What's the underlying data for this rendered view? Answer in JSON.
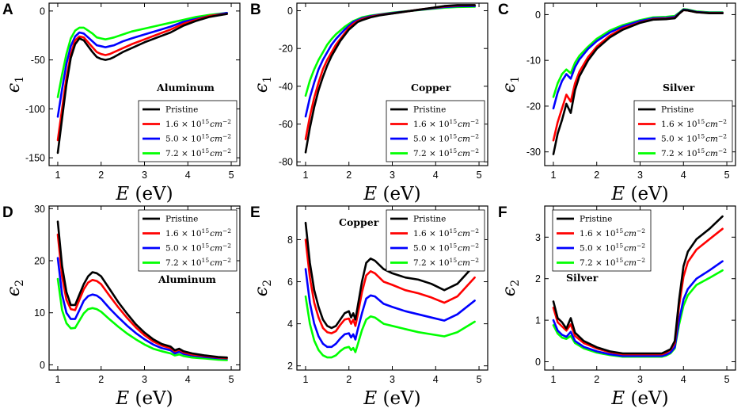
{
  "colors": {
    "pristine": "#000000",
    "dose1": "#ff0000",
    "dose2": "#0000ff",
    "dose3": "#00ff00"
  },
  "legend": {
    "pristine": "Pristine",
    "dose1": "1.6 × 10^15 cm^−2",
    "dose2": "5.0 × 10^15 cm^−2",
    "dose3": "7.2 × 10^15 cm^−2",
    "dose_mant": [
      "1.6",
      "5.0",
      "7.2"
    ],
    "times_base": "× 10",
    "exp": "15",
    "unit": "cm",
    "unit_exp": "−2"
  },
  "xlabel": {
    "var": "E",
    "unit": "(eV)"
  },
  "chart_data": [
    {
      "id": "A",
      "panel_label": "A",
      "type": "line",
      "material": "Aluminum",
      "quantity": "e1",
      "ylabel_sym": "ϵ",
      "ylabel_sub": "1",
      "xlim": [
        0.8,
        5.2
      ],
      "ylim": [
        -158,
        8
      ],
      "xticks": [
        1,
        2,
        3,
        4,
        5
      ],
      "yticks": [
        -150,
        -100,
        -50,
        0
      ],
      "x": [
        1.0,
        1.1,
        1.2,
        1.3,
        1.4,
        1.5,
        1.6,
        1.7,
        1.8,
        1.9,
        2.0,
        2.1,
        2.2,
        2.3,
        2.5,
        2.7,
        3.0,
        3.3,
        3.6,
        3.9,
        4.2,
        4.5,
        4.9
      ],
      "series": [
        {
          "name": "Pristine",
          "key": "pristine",
          "values": [
            -145,
            -110,
            -75,
            -48,
            -34,
            -28,
            -30,
            -36,
            -42,
            -47,
            -49,
            -50,
            -49,
            -47,
            -42,
            -38,
            -32,
            -27,
            -22,
            -15,
            -10,
            -6,
            -3
          ]
        },
        {
          "name": "1.6 × 10^15 cm^−2",
          "key": "dose1",
          "values": [
            -132,
            -100,
            -68,
            -44,
            -30,
            -26,
            -27,
            -32,
            -37,
            -42,
            -44,
            -45,
            -44,
            -42,
            -38,
            -34,
            -29,
            -24,
            -19,
            -13,
            -9,
            -5,
            -3
          ]
        },
        {
          "name": "5.0 × 10^15 cm^−2",
          "key": "dose2",
          "values": [
            -108,
            -80,
            -54,
            -36,
            -26,
            -22,
            -23,
            -27,
            -31,
            -35,
            -36,
            -37,
            -36,
            -35,
            -31,
            -28,
            -24,
            -20,
            -16,
            -11,
            -8,
            -5,
            -2
          ]
        },
        {
          "name": "7.2 × 10^15 cm^−2",
          "key": "dose3",
          "values": [
            -88,
            -65,
            -44,
            -28,
            -20,
            -17,
            -17,
            -20,
            -23,
            -27,
            -28,
            -29,
            -28,
            -27,
            -24,
            -21,
            -18,
            -15,
            -12,
            -9,
            -6,
            -4,
            -2
          ]
        }
      ]
    },
    {
      "id": "B",
      "panel_label": "B",
      "type": "line",
      "material": "Copper",
      "quantity": "e1",
      "ylabel_sym": "ϵ",
      "ylabel_sub": "1",
      "xlim": [
        0.8,
        5.2
      ],
      "ylim": [
        -82,
        4
      ],
      "xticks": [
        1,
        2,
        3,
        4,
        5
      ],
      "yticks": [
        -80,
        -60,
        -40,
        -20,
        0
      ],
      "x": [
        1.0,
        1.1,
        1.2,
        1.3,
        1.4,
        1.5,
        1.6,
        1.7,
        1.8,
        1.9,
        2.0,
        2.1,
        2.2,
        2.3,
        2.5,
        2.7,
        3.0,
        3.3,
        3.6,
        3.9,
        4.2,
        4.5,
        4.9
      ],
      "series": [
        {
          "name": "Pristine",
          "key": "pristine",
          "values": [
            -75,
            -62,
            -51,
            -42,
            -35,
            -29,
            -24,
            -20,
            -16,
            -13,
            -10,
            -8,
            -6,
            -5,
            -3.5,
            -2.5,
            -1.5,
            -0.5,
            0.5,
            1.5,
            2.5,
            3.0,
            3.0
          ]
        },
        {
          "name": "1.6 × 10^15 cm^−2",
          "key": "dose1",
          "values": [
            -68,
            -56,
            -46,
            -38,
            -31,
            -26,
            -22,
            -18,
            -15,
            -12,
            -9,
            -7,
            -5.5,
            -4.5,
            -3.2,
            -2.3,
            -1.4,
            -0.5,
            0.5,
            1.4,
            2.3,
            2.8,
            2.9
          ]
        },
        {
          "name": "5.0 × 10^15 cm^−2",
          "key": "dose2",
          "values": [
            -56,
            -46,
            -38,
            -31,
            -26,
            -22,
            -18,
            -15,
            -12.5,
            -10,
            -8,
            -6,
            -5,
            -4,
            -2.9,
            -2.1,
            -1.2,
            -0.4,
            0.4,
            1.2,
            2.0,
            2.4,
            2.5
          ]
        },
        {
          "name": "7.2 × 10^15 cm^−2",
          "key": "dose3",
          "values": [
            -45,
            -37,
            -31,
            -26,
            -22,
            -18,
            -15,
            -12.5,
            -10.5,
            -8.5,
            -7,
            -5.5,
            -4.5,
            -3.5,
            -2.6,
            -1.9,
            -1.0,
            -0.3,
            0.3,
            1.0,
            1.6,
            2.0,
            2.1
          ]
        }
      ]
    },
    {
      "id": "C",
      "panel_label": "C",
      "type": "line",
      "material": "Silver",
      "quantity": "e1",
      "ylabel_sym": "ϵ",
      "ylabel_sub": "1",
      "xlim": [
        0.8,
        5.2
      ],
      "ylim": [
        -33,
        2.5
      ],
      "xticks": [
        1,
        2,
        3,
        4,
        5
      ],
      "yticks": [
        -30,
        -20,
        -10,
        0
      ],
      "x": [
        1.0,
        1.1,
        1.2,
        1.3,
        1.4,
        1.5,
        1.6,
        1.8,
        2.0,
        2.3,
        2.6,
        3.0,
        3.3,
        3.6,
        3.7,
        3.8,
        3.9,
        4.0,
        4.1,
        4.3,
        4.6,
        4.9
      ],
      "series": [
        {
          "name": "Pristine",
          "key": "pristine",
          "values": [
            -30.5,
            -26,
            -23,
            -19.5,
            -21.5,
            -16.5,
            -13.5,
            -10,
            -7.5,
            -5,
            -3.3,
            -1.8,
            -1.1,
            -1.0,
            -0.9,
            -0.8,
            0.2,
            1.0,
            0.9,
            0.5,
            0.3,
            0.3
          ]
        },
        {
          "name": "1.6 × 10^15 cm^−2",
          "key": "dose1",
          "values": [
            -27.5,
            -23.5,
            -20.5,
            -17.5,
            -19,
            -15,
            -12.5,
            -9.3,
            -7,
            -4.6,
            -3.0,
            -1.7,
            -1.0,
            -0.9,
            -0.8,
            -0.7,
            0.2,
            1.0,
            0.9,
            0.5,
            0.35,
            0.35
          ]
        },
        {
          "name": "5.0 × 10^15 cm^−2",
          "key": "dose2",
          "values": [
            -20.5,
            -17,
            -14.5,
            -13,
            -14,
            -11.5,
            -9.8,
            -7.5,
            -5.8,
            -3.9,
            -2.6,
            -1.4,
            -0.8,
            -0.7,
            -0.6,
            -0.5,
            0.3,
            1.1,
            1.0,
            0.6,
            0.4,
            0.4
          ]
        },
        {
          "name": "7.2 × 10^15 cm^−2",
          "key": "dose3",
          "values": [
            -18,
            -15,
            -13,
            -12,
            -12.8,
            -10.5,
            -9,
            -7,
            -5.3,
            -3.5,
            -2.3,
            -1.2,
            -0.6,
            -0.5,
            -0.4,
            -0.3,
            0.4,
            1.2,
            1.1,
            0.7,
            0.5,
            0.5
          ]
        }
      ]
    },
    {
      "id": "D",
      "panel_label": "D",
      "type": "line",
      "material": "Aluminum",
      "quantity": "e2",
      "ylabel_sym": "ϵ",
      "ylabel_sub": "2",
      "xlim": [
        0.8,
        5.2
      ],
      "ylim": [
        -1,
        30.5
      ],
      "xticks": [
        1,
        2,
        3,
        4,
        5
      ],
      "yticks": [
        0,
        10,
        20,
        30
      ],
      "x": [
        1.0,
        1.1,
        1.2,
        1.3,
        1.4,
        1.5,
        1.6,
        1.7,
        1.8,
        1.9,
        2.0,
        2.2,
        2.4,
        2.6,
        2.8,
        3.0,
        3.2,
        3.4,
        3.6,
        3.7,
        3.8,
        3.9,
        4.1,
        4.4,
        4.7,
        4.9
      ],
      "series": [
        {
          "name": "Pristine",
          "key": "pristine",
          "values": [
            27.5,
            19,
            14,
            11.5,
            11.5,
            13.5,
            15.5,
            17,
            17.8,
            17.6,
            17,
            14.5,
            12,
            9.8,
            7.8,
            6.2,
            4.9,
            4.0,
            3.5,
            2.8,
            3.1,
            2.6,
            2.2,
            1.8,
            1.5,
            1.4
          ]
        },
        {
          "name": "1.6 × 10^15 cm^−2",
          "key": "dose1",
          "values": [
            25,
            17,
            12.5,
            10.7,
            10.5,
            12.5,
            14.5,
            15.8,
            16.3,
            16.1,
            15.5,
            13.2,
            11,
            9,
            7.2,
            5.7,
            4.5,
            3.7,
            3.2,
            2.6,
            2.9,
            2.4,
            2.0,
            1.7,
            1.4,
            1.3
          ]
        },
        {
          "name": "5.0 × 10^15 cm^−2",
          "key": "dose2",
          "values": [
            20.5,
            13.5,
            10,
            8.8,
            8.8,
            10.5,
            12.3,
            13.2,
            13.5,
            13.3,
            12.7,
            10.8,
            9.1,
            7.5,
            6.1,
            4.9,
            3.9,
            3.2,
            2.8,
            2.2,
            2.5,
            2.1,
            1.8,
            1.5,
            1.3,
            1.2
          ]
        },
        {
          "name": "7.2 × 10^15 cm^−2",
          "key": "dose3",
          "values": [
            16.5,
            10.5,
            8,
            7,
            7.1,
            8.5,
            9.9,
            10.7,
            10.9,
            10.7,
            10.2,
            8.7,
            7.3,
            6.0,
            4.9,
            3.9,
            3.1,
            2.6,
            2.2,
            1.8,
            2.0,
            1.7,
            1.4,
            1.2,
            1.0,
            0.9
          ]
        }
      ]
    },
    {
      "id": "E",
      "panel_label": "E",
      "type": "line",
      "material": "Copper",
      "quantity": "e2",
      "ylabel_sym": "ϵ",
      "ylabel_sub": "2",
      "xlim": [
        0.8,
        5.2
      ],
      "ylim": [
        1.8,
        9.6
      ],
      "xticks": [
        1,
        2,
        3,
        4,
        5
      ],
      "yticks": [
        2,
        4,
        6,
        8
      ],
      "x": [
        1.0,
        1.1,
        1.2,
        1.3,
        1.4,
        1.5,
        1.6,
        1.7,
        1.8,
        1.9,
        2.0,
        2.05,
        2.1,
        2.15,
        2.2,
        2.3,
        2.4,
        2.5,
        2.6,
        2.8,
        3.0,
        3.3,
        3.6,
        3.9,
        4.2,
        4.5,
        4.9
      ],
      "series": [
        {
          "name": "Pristine",
          "key": "pristine",
          "values": [
            8.8,
            6.9,
            5.6,
            4.8,
            4.2,
            3.9,
            3.8,
            3.9,
            4.2,
            4.5,
            4.6,
            4.3,
            4.5,
            4.2,
            4.8,
            6.0,
            6.9,
            7.1,
            7.0,
            6.6,
            6.4,
            6.2,
            6.1,
            5.9,
            5.6,
            5.9,
            6.8
          ]
        },
        {
          "name": "1.6 × 10^15 cm^−2",
          "key": "dose1",
          "values": [
            8.0,
            6.2,
            5.0,
            4.3,
            3.8,
            3.6,
            3.55,
            3.65,
            3.95,
            4.2,
            4.25,
            4.0,
            4.2,
            3.9,
            4.4,
            5.5,
            6.3,
            6.5,
            6.4,
            6.0,
            5.85,
            5.6,
            5.45,
            5.25,
            5.0,
            5.3,
            6.2
          ]
        },
        {
          "name": "5.0 × 10^15 cm^−2",
          "key": "dose2",
          "values": [
            6.6,
            5.0,
            4.0,
            3.4,
            3.05,
            2.9,
            2.9,
            3.05,
            3.3,
            3.5,
            3.55,
            3.35,
            3.5,
            3.25,
            3.7,
            4.5,
            5.2,
            5.35,
            5.3,
            4.95,
            4.8,
            4.6,
            4.45,
            4.3,
            4.15,
            4.45,
            5.1
          ]
        },
        {
          "name": "7.2 × 10^15 cm^−2",
          "key": "dose3",
          "values": [
            5.3,
            4.0,
            3.2,
            2.75,
            2.5,
            2.4,
            2.4,
            2.5,
            2.7,
            2.85,
            2.9,
            2.75,
            2.85,
            2.65,
            3.0,
            3.7,
            4.2,
            4.35,
            4.3,
            4.0,
            3.9,
            3.75,
            3.6,
            3.5,
            3.4,
            3.6,
            4.1
          ]
        }
      ]
    },
    {
      "id": "F",
      "panel_label": "F",
      "type": "line",
      "material": "Silver",
      "quantity": "e2",
      "ylabel_sym": "ϵ",
      "ylabel_sub": "2",
      "xlim": [
        0.8,
        5.2
      ],
      "ylim": [
        -0.2,
        3.75
      ],
      "xticks": [
        1,
        2,
        3,
        4,
        5
      ],
      "yticks": [
        0,
        1,
        2,
        3
      ],
      "x": [
        1.0,
        1.1,
        1.2,
        1.3,
        1.4,
        1.5,
        1.7,
        2.0,
        2.3,
        2.6,
        3.0,
        3.3,
        3.5,
        3.6,
        3.7,
        3.8,
        3.9,
        4.0,
        4.1,
        4.3,
        4.6,
        4.9
      ],
      "series": [
        {
          "name": "Pristine",
          "key": "pristine",
          "values": [
            1.45,
            1.05,
            0.95,
            0.8,
            1.05,
            0.7,
            0.5,
            0.35,
            0.25,
            0.2,
            0.2,
            0.2,
            0.2,
            0.25,
            0.3,
            0.5,
            1.5,
            2.3,
            2.65,
            2.95,
            3.2,
            3.5
          ]
        },
        {
          "name": "1.6 × 10^15 cm^−2",
          "key": "dose1",
          "values": [
            1.3,
            0.95,
            0.85,
            0.75,
            0.9,
            0.62,
            0.45,
            0.32,
            0.23,
            0.18,
            0.18,
            0.18,
            0.18,
            0.22,
            0.28,
            0.45,
            1.35,
            2.05,
            2.4,
            2.7,
            2.95,
            3.2
          ]
        },
        {
          "name": "5.0 × 10^15 cm^−2",
          "key": "dose2",
          "values": [
            1.0,
            0.75,
            0.65,
            0.6,
            0.72,
            0.5,
            0.36,
            0.25,
            0.18,
            0.14,
            0.14,
            0.14,
            0.14,
            0.17,
            0.22,
            0.35,
            1.0,
            1.5,
            1.75,
            2.0,
            2.2,
            2.42
          ]
        },
        {
          "name": "7.2 × 10^15 cm^−2",
          "key": "dose3",
          "values": [
            0.88,
            0.68,
            0.58,
            0.55,
            0.62,
            0.45,
            0.32,
            0.22,
            0.16,
            0.12,
            0.12,
            0.12,
            0.12,
            0.15,
            0.2,
            0.32,
            0.9,
            1.35,
            1.6,
            1.85,
            2.02,
            2.2
          ]
        }
      ]
    }
  ]
}
